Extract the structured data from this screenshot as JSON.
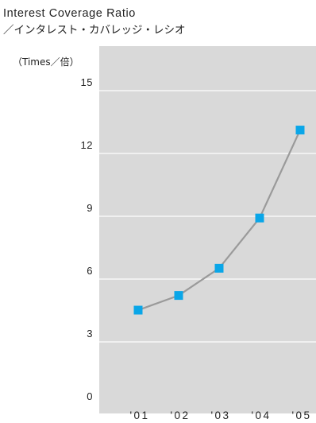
{
  "chart_data": {
    "type": "line",
    "title": "Interest Coverage Ratio",
    "subtitle": "／インタレスト・カバレッジ・レシオ",
    "ylabel": "（Times／倍）",
    "xlabel": "",
    "categories": [
      "'01",
      "'02",
      "'03",
      "'04",
      "'05"
    ],
    "yticks": [
      "0",
      "3",
      "6",
      "9",
      "12",
      "15"
    ],
    "ylim": [
      0,
      15
    ],
    "grid": true,
    "series": [
      {
        "values": [
          4.1,
          4.8,
          6.1,
          8.5,
          12.7
        ]
      }
    ],
    "colors": {
      "plot_bg": "#d9d9d9",
      "gridline": "#ffffff",
      "line": "#9a9a9a",
      "marker": "#0aa6e8"
    }
  }
}
